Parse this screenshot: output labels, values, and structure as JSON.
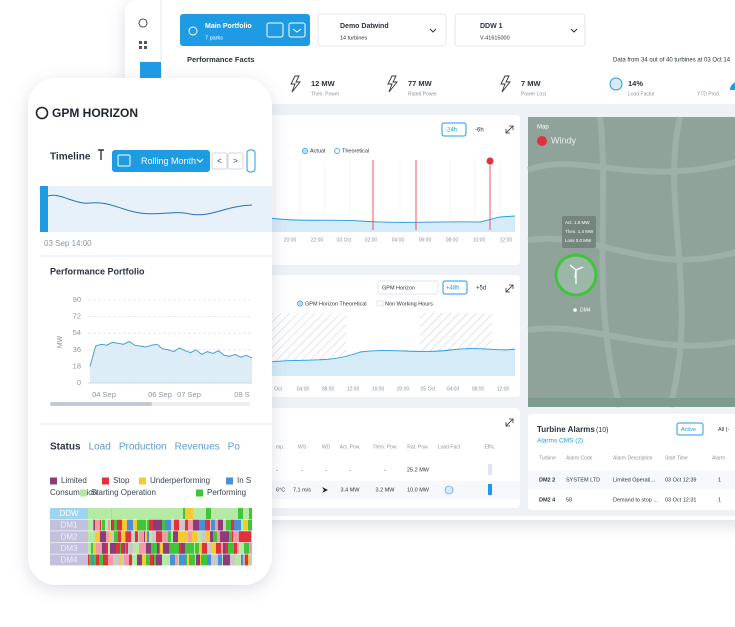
{
  "desktop": {
    "header": {
      "portfolio": "Main Portfolio",
      "parks": "7 parks",
      "park": "Demo Datwind",
      "turbines": "14 turbines",
      "turbine": "DDW 1",
      "turbine_id": "V-41615000"
    },
    "facts": {
      "title": "Performance Facts",
      "note": "Data from 34 out of 40 turbines at 03 Oct 14",
      "items": [
        {
          "value": "12 MW",
          "label": "Theo. Power"
        },
        {
          "value": "77 MW",
          "label": "Rated Power"
        },
        {
          "value": "7 MW",
          "label": "Power Lost"
        },
        {
          "value": "14%",
          "label": "Load Factor"
        }
      ],
      "ytd": "YTD Prod."
    },
    "chart1": {
      "buttons": [
        "-24h",
        "-6h"
      ],
      "legend": [
        "Actual",
        "Theoretical"
      ],
      "xlabels": [
        "20:00",
        "22:00",
        "03 Oct",
        "02:00",
        "04:00",
        "06:00",
        "08:00",
        "10:00",
        "12:00"
      ]
    },
    "chart2": {
      "dropdown": "GPM Horizon",
      "buttons": [
        "+48h",
        "+5d"
      ],
      "legend": [
        "GPM Horizon Theoretical",
        "Non Working Hours"
      ],
      "xlabels": [
        "Oct",
        "04:00",
        "08:00",
        "12:00",
        "16:00",
        "20:00",
        "05 Oct",
        "04:00",
        "08:00",
        "12:00"
      ]
    },
    "table": {
      "headers": [
        "mp.",
        "WS",
        "WD",
        "Act. Pow.",
        "Theo. Pow.",
        "Rat. Pow.",
        "Load Fact",
        "Effic."
      ],
      "rows": [
        [
          "-",
          "-",
          "-",
          "-",
          "-",
          "25.2 MW"
        ],
        [
          "6°C",
          "7.1 m/s",
          "",
          "3.4 MW",
          "3.2 MW",
          "10.0 MW"
        ]
      ]
    },
    "map": {
      "title": "Map",
      "brand": "Windy",
      "info": [
        "Act.  1.8 MW",
        "Theo. 1.4 MW",
        "Loss  0.0 MW"
      ],
      "turbine": "DM4"
    },
    "alarms": {
      "title": "Turbine Alarms",
      "count": "(10)",
      "cms": "Alarms CMS (2)",
      "filters": [
        "Active",
        "All (-"
      ],
      "headers": [
        "Turbine",
        "Alarm Code",
        "Alarm Description",
        "Start Time",
        "Alarm"
      ],
      "rows": [
        [
          "DM2 2",
          "SYSTEM LTD",
          "Limited Operati...",
          "03 Oct 12:39",
          "1"
        ],
        [
          "DM2 4",
          "58",
          "Demand to stop ...",
          "03 Oct 12:31",
          "1"
        ]
      ]
    }
  },
  "phone": {
    "brand": "GPM HORIZON",
    "timeline": {
      "title": "Timeline",
      "range": "Rolling Month",
      "prev": "<",
      "next": ">",
      "date": "03 Sep 14:00"
    },
    "chart_data": {
      "type": "area",
      "title": "Performance Portfolio",
      "ylabel": "MW",
      "color": "#4a9fd8",
      "ylim": [
        0,
        90
      ],
      "yticks": [
        0,
        18,
        36,
        54,
        72,
        90
      ],
      "grid": true,
      "xlabels": [
        "04 Sep",
        "06 Sep",
        "07 Sep",
        "09 S"
      ],
      "values": [
        18,
        40,
        42,
        41,
        44,
        43,
        42,
        45,
        41,
        40,
        39,
        41,
        42,
        37,
        36,
        34,
        38,
        35,
        33,
        36,
        31,
        34,
        32,
        35,
        30,
        29,
        31,
        28,
        30,
        27
      ]
    },
    "tabs": [
      "Status",
      "Load",
      "Production",
      "Revenues",
      "Po"
    ],
    "legend": [
      {
        "name": "Limited",
        "color": "#8e3b7a"
      },
      {
        "name": "Stop",
        "color": "#e0323c"
      },
      {
        "name": "Underperforming",
        "color": "#f5c932"
      },
      {
        "name": "In S",
        "color": "#4a8fd8"
      },
      {
        "name": "Consumption",
        "color": null
      },
      {
        "name": "Starting Operation",
        "color": "#b5eaa5"
      },
      {
        "name": "Performing",
        "color": "#3fc43a"
      }
    ],
    "rows": [
      "DDW",
      "DM1",
      "DM2",
      "DM3",
      "DM4"
    ]
  }
}
